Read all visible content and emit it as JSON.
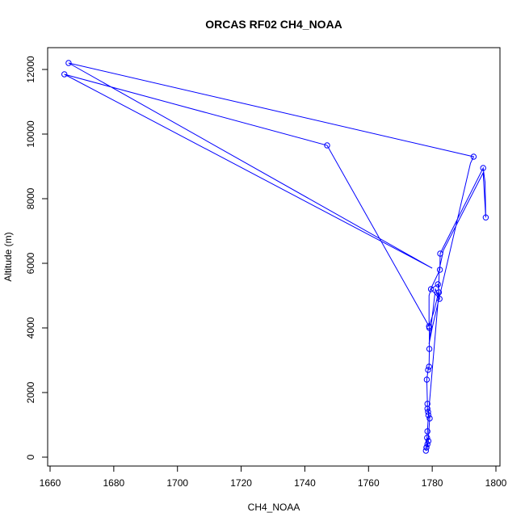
{
  "chart_data": {
    "type": "line",
    "title": "ORCAS RF02 CH4_NOAA",
    "xlabel": "CH4_NOAA",
    "ylabel": "Altitude (m)",
    "xlim": [
      1660,
      1800
    ],
    "ylim": [
      0,
      12000
    ],
    "xticks": [
      1660,
      1680,
      1700,
      1720,
      1740,
      1760,
      1780,
      1800
    ],
    "yticks": [
      0,
      2000,
      4000,
      6000,
      8000,
      10000,
      12000
    ],
    "grid": false,
    "legend": "none",
    "color": "#0000ff",
    "x": [
      1778.0,
      1778.2,
      1778.5,
      1778.8,
      1778.4,
      1778.2,
      1778.6,
      1779.2,
      1778.7,
      1778.5,
      1778.5,
      1778.3,
      1778.7,
      1779.0,
      1779.1,
      1779.1,
      1779.0,
      1779.0,
      1779.0,
      1779.6,
      1782.3,
      1782.1,
      1781.8,
      1779.5,
      1782.4,
      1782.5,
      1783.5,
      1796.0,
      1796.6,
      1796.8,
      1796.0,
      1783.5,
      1782.2,
      1782.0,
      1780.5,
      1779.0,
      1747.0,
      1664.5,
      1780.0,
      1665.8,
      1793.0,
      1792.0,
      1780.0,
      1779.0,
      1781.0,
      1782.0,
      1778.8,
      1778.5,
      1778.2
    ],
    "y": [
      200,
      300,
      400,
      500,
      600,
      400,
      300,
      1200,
      1400,
      1500,
      1650,
      2400,
      2700,
      2800,
      3350,
      4000,
      4050,
      4100,
      5000,
      5200,
      4900,
      5100,
      5350,
      5200,
      5800,
      6300,
      6500,
      8950,
      8500,
      7420,
      8800,
      6400,
      5800,
      5100,
      4500,
      4050,
      9650,
      11850,
      5850,
      12200,
      9300,
      9100,
      4000,
      3500,
      5200,
      5000,
      1300,
      800,
      300
    ],
    "markers": [
      [
        1778.0,
        200
      ],
      [
        1778.2,
        300
      ],
      [
        1778.5,
        400
      ],
      [
        1778.8,
        500
      ],
      [
        1778.4,
        600
      ],
      [
        1779.2,
        1200
      ],
      [
        1778.7,
        1400
      ],
      [
        1778.5,
        1500
      ],
      [
        1778.5,
        1650
      ],
      [
        1778.3,
        2400
      ],
      [
        1778.7,
        2700
      ],
      [
        1779.0,
        2800
      ],
      [
        1779.1,
        3350
      ],
      [
        1779.1,
        4000
      ],
      [
        1779.0,
        4050
      ],
      [
        1779.6,
        5200
      ],
      [
        1782.3,
        4900
      ],
      [
        1782.1,
        5100
      ],
      [
        1781.8,
        5350
      ],
      [
        1782.4,
        5800
      ],
      [
        1782.5,
        6300
      ],
      [
        1796.0,
        8950
      ],
      [
        1796.8,
        7420
      ],
      [
        1747.0,
        9650
      ],
      [
        1664.5,
        11850
      ],
      [
        1665.8,
        12200
      ],
      [
        1793.0,
        9300
      ],
      [
        1778.8,
        1300
      ],
      [
        1778.5,
        800
      ],
      [
        1778.2,
        300
      ]
    ]
  }
}
